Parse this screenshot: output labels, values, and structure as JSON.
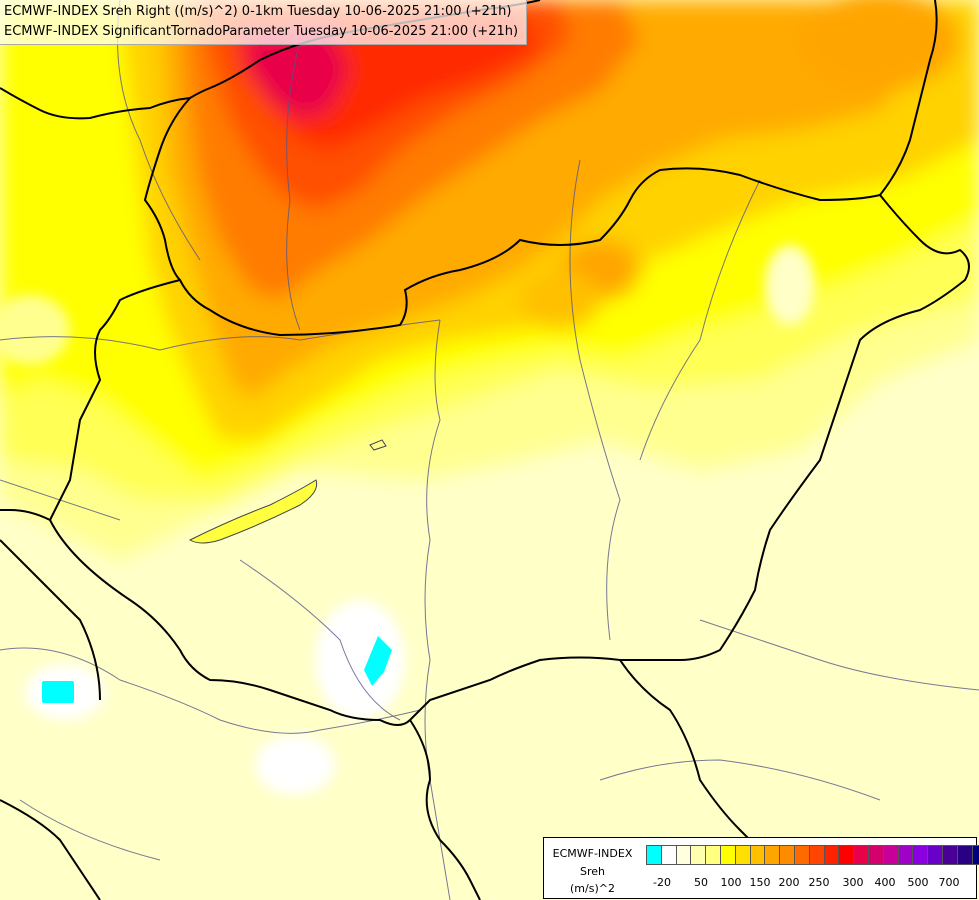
{
  "title": {
    "line1": "ECMWF-INDEX Sreh Right ((m/s)^2) 0-1km Tuesday 10-06-2025 21:00 (+21h)",
    "line2": "ECMWF-INDEX SignificantTornadoParameter Tuesday 10-06-2025 21:00 (+21h)"
  },
  "legend": {
    "title_line1": "ECMWF-INDEX",
    "title_line2": "Sreh",
    "title_line3": "(m/s)^2",
    "colors": [
      "#00ffff",
      "#ffffff",
      "#ffffe0",
      "#ffffb0",
      "#ffff80",
      "#ffff00",
      "#ffe000",
      "#ffc000",
      "#ffa500",
      "#ff8c00",
      "#ff6a00",
      "#ff4500",
      "#ff2200",
      "#ff0000",
      "#e8004a",
      "#d4006e",
      "#c8009a",
      "#a000c8",
      "#8a00e0",
      "#6a00c8",
      "#4a0096",
      "#2a0082",
      "#000080"
    ],
    "ticks": [
      "-20",
      "50",
      "100",
      "150",
      "200",
      "250",
      "300",
      "400",
      "500",
      "700"
    ]
  },
  "colors": {
    "border": "#000000",
    "river": "#555588",
    "background": "#ffffc8"
  }
}
